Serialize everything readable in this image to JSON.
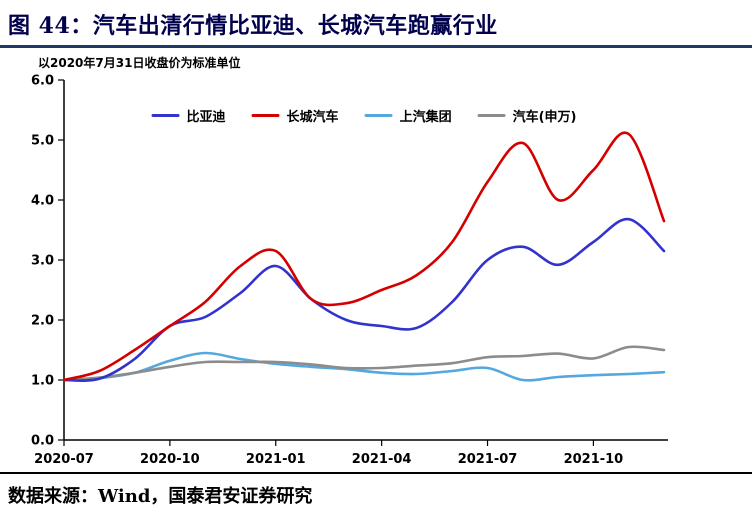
{
  "header": {
    "title": "图 44：汽车出清行情比亚迪、长城汽车跑赢行业"
  },
  "chart": {
    "subtitle": "以2020年7月31日收盘价为标准单位"
  },
  "footer": {
    "source": "数据来源：Wind，国泰君安证券研究"
  },
  "colors": {
    "title_text": "#00004D",
    "title_underline": "#1F3864",
    "footer_divider": "#000000",
    "axis": "#000000"
  },
  "chart_data": {
    "type": "line",
    "title": "",
    "xlabel": "",
    "ylabel": "",
    "subtitle": "以2020年7月31日收盘价为标准单位",
    "ylim": [
      0.0,
      6.0
    ],
    "grid": false,
    "legend_position": "top-center",
    "y_ticks": [
      "0.0",
      "1.0",
      "2.0",
      "3.0",
      "4.0",
      "5.0",
      "6.0"
    ],
    "x_ticks": [
      "2020-07",
      "2020-10",
      "2021-01",
      "2021-04",
      "2021-07",
      "2021-10"
    ],
    "x_tick_positions": [
      0,
      3,
      6,
      9,
      12,
      15
    ],
    "x": [
      "2020-07",
      "2020-08",
      "2020-09",
      "2020-10",
      "2020-11",
      "2020-12",
      "2021-01",
      "2021-02",
      "2021-03",
      "2021-04",
      "2021-05",
      "2021-06",
      "2021-07",
      "2021-08",
      "2021-09",
      "2021-10",
      "2021-11",
      "2021-12"
    ],
    "series": [
      {
        "name": "比亚迪",
        "color": "#3232CD",
        "values": [
          1.0,
          1.02,
          1.35,
          1.9,
          2.05,
          2.45,
          2.9,
          2.35,
          2.0,
          1.9,
          1.87,
          2.3,
          3.0,
          3.22,
          2.92,
          3.3,
          3.68,
          3.15
        ]
      },
      {
        "name": "长城汽车",
        "color": "#D40000",
        "values": [
          1.0,
          1.15,
          1.5,
          1.9,
          2.3,
          2.9,
          3.15,
          2.35,
          2.28,
          2.5,
          2.75,
          3.3,
          4.3,
          4.95,
          4.0,
          4.5,
          5.1,
          3.65
        ]
      },
      {
        "name": "上汽集团",
        "color": "#55A8DE",
        "values": [
          1.0,
          1.03,
          1.12,
          1.32,
          1.45,
          1.35,
          1.27,
          1.22,
          1.18,
          1.12,
          1.1,
          1.15,
          1.2,
          1.0,
          1.05,
          1.08,
          1.1,
          1.13
        ]
      },
      {
        "name": "汽车(申万)",
        "color": "#8C8C8C",
        "values": [
          1.0,
          1.04,
          1.12,
          1.22,
          1.3,
          1.3,
          1.3,
          1.26,
          1.2,
          1.2,
          1.24,
          1.28,
          1.38,
          1.4,
          1.44,
          1.36,
          1.55,
          1.5
        ]
      }
    ]
  }
}
